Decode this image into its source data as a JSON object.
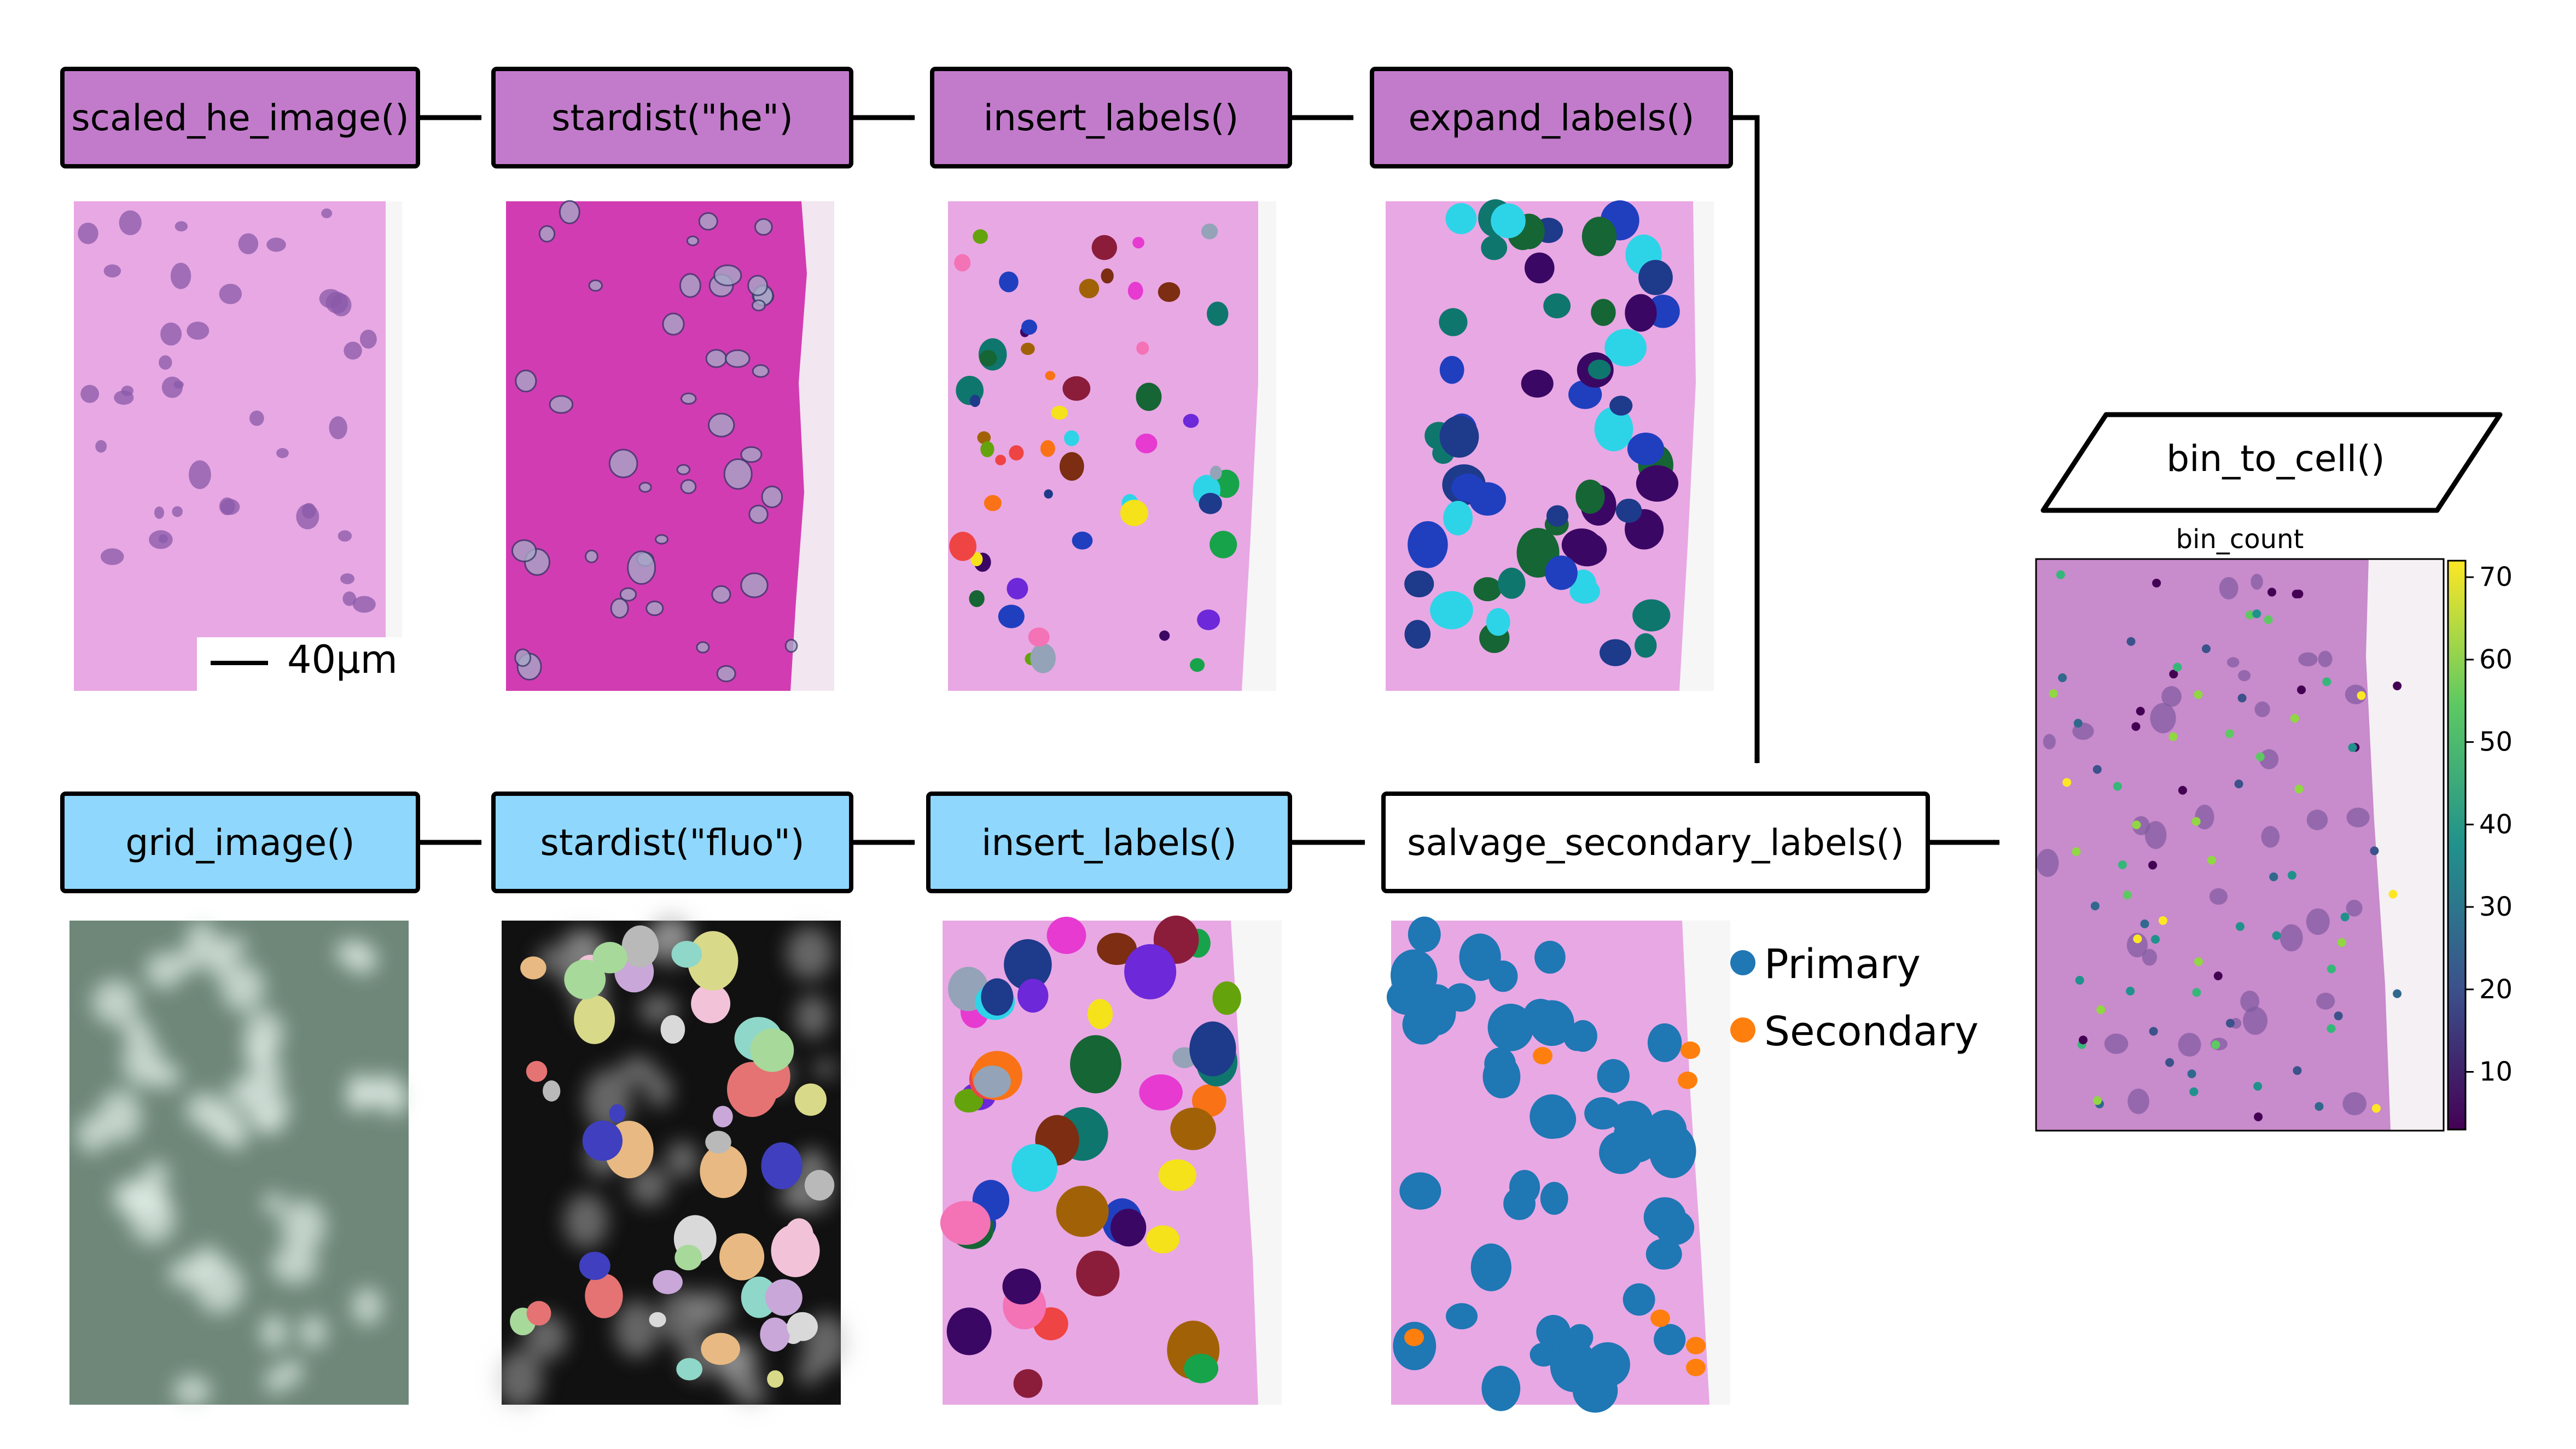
{
  "top_row": {
    "scaled_he_image": "scaled_he_image()",
    "stardist_he": "stardist(\"he\")",
    "insert_labels": "insert_labels()",
    "expand_labels": "expand_labels()"
  },
  "bottom_row": {
    "grid_image": "grid_image()",
    "stardist_fluo": "stardist(\"fluo\")",
    "insert_labels": "insert_labels()",
    "salvage": "salvage_secondary_labels()"
  },
  "bin_to_cell": "bin_to_cell()",
  "scale_bar_label": "40μm",
  "legend": [
    {
      "label": "Primary",
      "color": "#1f77b4"
    },
    {
      "label": "Secondary",
      "color": "#ff7f0e"
    }
  ],
  "result_plot": {
    "title": "bin_count",
    "colorbar_ticks": [
      10,
      20,
      30,
      40,
      50,
      60,
      70
    ],
    "colorbar_range": [
      3,
      72
    ]
  },
  "colors": {
    "purple_box": "#c27bcb",
    "blue_box": "#8fd7fd",
    "he_tissue": "#e7a6e2",
    "stardist_tissue": "#d63fb5",
    "fluo_background": "#6e8779",
    "primary": "#1f77b4",
    "secondary": "#ff7f0e"
  }
}
